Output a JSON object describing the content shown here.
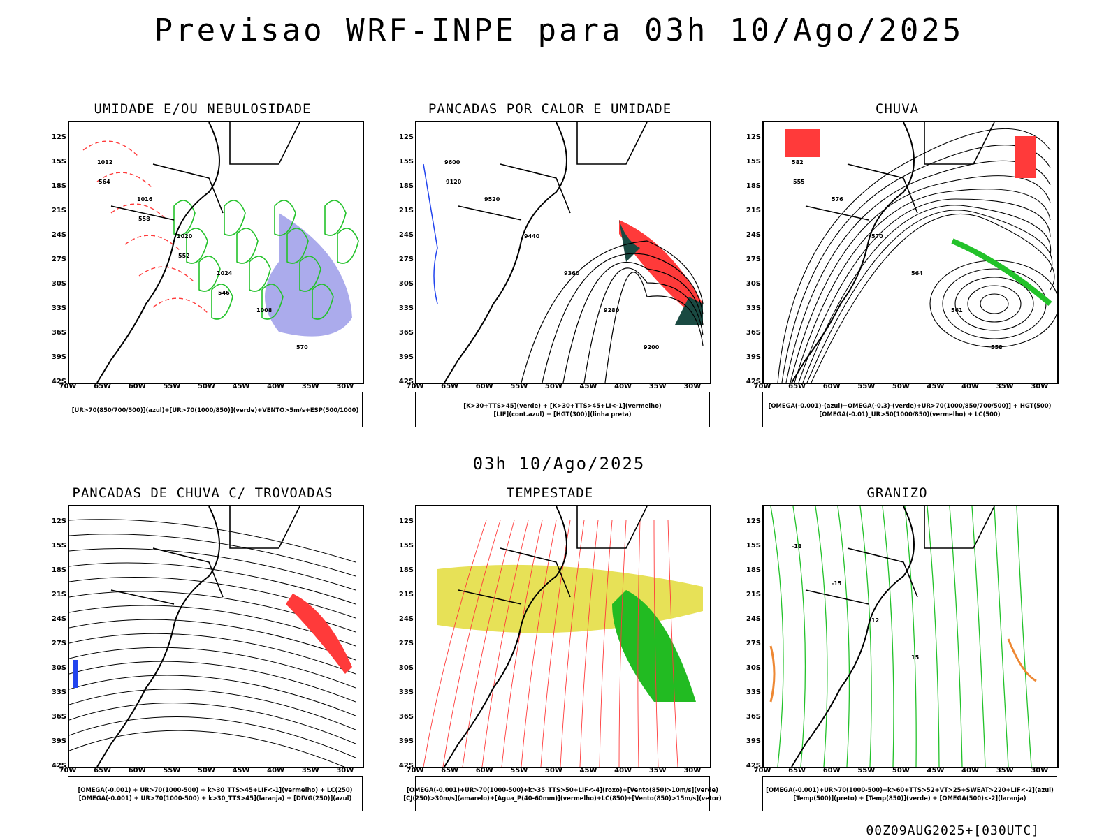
{
  "header": {
    "title": "Previsao WRF-INPE  para 03h 10/Ago/2025"
  },
  "mid": {
    "title": "03h 10/Ago/2025"
  },
  "footer": {
    "stamp": "00Z09AUG2025+[030UTC]"
  },
  "axes": {
    "lat": [
      "12S",
      "15S",
      "18S",
      "21S",
      "24S",
      "27S",
      "30S",
      "33S",
      "36S",
      "39S",
      "42S"
    ],
    "lon": [
      "70W",
      "65W",
      "60W",
      "55W",
      "50W",
      "45W",
      "40W",
      "35W",
      "30W"
    ]
  },
  "panels": [
    {
      "id": "umidade",
      "title": "UMIDADE E/OU NEBULOSIDADE",
      "legend": [
        "[UR>70(850/700/500)](azul)+[UR>70(1000/850)](verde)+VENTO>5m/s+ESP(500/1000)"
      ],
      "labels": [
        "1012",
        "1016",
        "1020",
        "1024",
        "1008",
        "570",
        "564",
        "558",
        "552",
        "546"
      ],
      "colors": {
        "primary": "#23c22a",
        "secondary": "#6666dd",
        "contour": "#ff3a3a"
      }
    },
    {
      "id": "pancadas-calor",
      "title": "PANCADAS POR CALOR E UMIDADE",
      "legend": [
        "[K>30+TTS>45](verde) + [K>30+TTS>45+LI<-1](vermelho)",
        "[LIF](cont.azul) + [HGT(300)](linha preta)"
      ],
      "labels": [
        "9600",
        "9520",
        "9440",
        "9360",
        "9280",
        "9200",
        "9120"
      ],
      "colors": {
        "primary": "#ff3a3a",
        "secondary": "#1a4a42",
        "contour": "#2244ee"
      }
    },
    {
      "id": "chuva",
      "title": "CHUVA",
      "legend": [
        "[OMEGA(-0.001)-(azul)+OMEGA(-0.3)-(verde)+UR>70(1000/850/700/500)] + HGT(500)",
        "[OMEGA(-0.01)_UR>50(1000/850)(vermelho) + LC(500)"
      ],
      "labels": [
        "582",
        "576",
        "570",
        "564",
        "561",
        "558",
        "555"
      ],
      "colors": {
        "primary": "#ff3a3a",
        "secondary": "#23c22a",
        "contour": "#2244ee"
      }
    },
    {
      "id": "pancadas-trovoadas",
      "title": "PANCADAS DE CHUVA C/ TROVOADAS",
      "legend": [
        "[OMEGA(-0.001) + UR>70(1000-500) + k>30_TTS>45+LIF<-1](vermelho) + LC(250)",
        "[OMEGA(-0.001) + UR>70(1000-500) + k>30_TTS>45](laranja) + [DIVG(250)](azul)"
      ],
      "labels": [],
      "colors": {
        "primary": "#ff3a3a",
        "secondary": "#ee8833",
        "contour": "#2244ee"
      }
    },
    {
      "id": "tempestade",
      "title": "TEMPESTADE",
      "legend": [
        "[OMEGA(-0.001)+UR>70(1000-500)+k>35_TTS>50+LIF<-4](roxo)+[Vento(850)>10m/s](verde)",
        "[CJ(250)>30m/s](amarelo)+[Agua_P(40-60mm)](vermelho)+LC(850)+[Vento(850)>15m/s](vetor)"
      ],
      "labels": [],
      "colors": {
        "primary": "#e3dc3a",
        "secondary": "#22bb22",
        "contour": "#ff3a3a"
      }
    },
    {
      "id": "granizo",
      "title": "GRANIZO",
      "legend": [
        "[OMEGA(-0.001)+UR>70(1000-500)+k>60+TTS>52+VT>25+SWEAT>220+LIF<-2](azul)",
        "[Temp(500)](preto) + [Temp(850)](verde) + [OMEGA(500)<-2](laranja)"
      ],
      "labels": [
        "-18",
        "-15",
        "12",
        "15"
      ],
      "colors": {
        "primary": "#23c22a",
        "secondary": "#ee8833",
        "contour": "#2244ee"
      }
    }
  ]
}
